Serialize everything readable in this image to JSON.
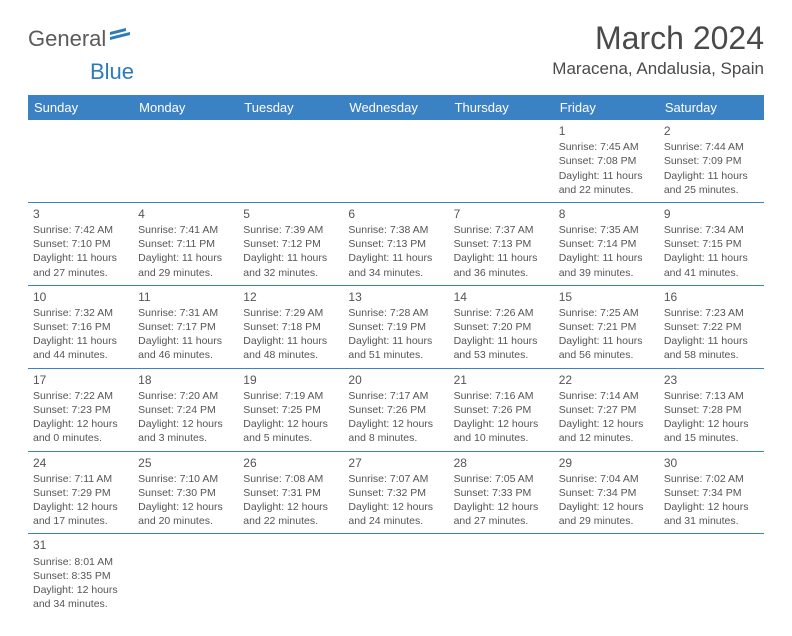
{
  "header": {
    "logo": {
      "part1": "General",
      "part2": "Blue"
    },
    "title": "March 2024",
    "location": "Maracena, Andalusia, Spain"
  },
  "daysOfWeek": [
    "Sunday",
    "Monday",
    "Tuesday",
    "Wednesday",
    "Thursday",
    "Friday",
    "Saturday"
  ],
  "colors": {
    "headerBg": "#3b82c4",
    "headerText": "#ffffff",
    "border": "#3b82c4",
    "text": "#555555",
    "logoAccent": "#2b7bbd"
  },
  "weeks": [
    [
      {
        "empty": true
      },
      {
        "empty": true
      },
      {
        "empty": true
      },
      {
        "empty": true
      },
      {
        "empty": true
      },
      {
        "day": "1",
        "sunrise": "Sunrise: 7:45 AM",
        "sunset": "Sunset: 7:08 PM",
        "daylight1": "Daylight: 11 hours",
        "daylight2": "and 22 minutes."
      },
      {
        "day": "2",
        "sunrise": "Sunrise: 7:44 AM",
        "sunset": "Sunset: 7:09 PM",
        "daylight1": "Daylight: 11 hours",
        "daylight2": "and 25 minutes."
      }
    ],
    [
      {
        "day": "3",
        "sunrise": "Sunrise: 7:42 AM",
        "sunset": "Sunset: 7:10 PM",
        "daylight1": "Daylight: 11 hours",
        "daylight2": "and 27 minutes."
      },
      {
        "day": "4",
        "sunrise": "Sunrise: 7:41 AM",
        "sunset": "Sunset: 7:11 PM",
        "daylight1": "Daylight: 11 hours",
        "daylight2": "and 29 minutes."
      },
      {
        "day": "5",
        "sunrise": "Sunrise: 7:39 AM",
        "sunset": "Sunset: 7:12 PM",
        "daylight1": "Daylight: 11 hours",
        "daylight2": "and 32 minutes."
      },
      {
        "day": "6",
        "sunrise": "Sunrise: 7:38 AM",
        "sunset": "Sunset: 7:13 PM",
        "daylight1": "Daylight: 11 hours",
        "daylight2": "and 34 minutes."
      },
      {
        "day": "7",
        "sunrise": "Sunrise: 7:37 AM",
        "sunset": "Sunset: 7:13 PM",
        "daylight1": "Daylight: 11 hours",
        "daylight2": "and 36 minutes."
      },
      {
        "day": "8",
        "sunrise": "Sunrise: 7:35 AM",
        "sunset": "Sunset: 7:14 PM",
        "daylight1": "Daylight: 11 hours",
        "daylight2": "and 39 minutes."
      },
      {
        "day": "9",
        "sunrise": "Sunrise: 7:34 AM",
        "sunset": "Sunset: 7:15 PM",
        "daylight1": "Daylight: 11 hours",
        "daylight2": "and 41 minutes."
      }
    ],
    [
      {
        "day": "10",
        "sunrise": "Sunrise: 7:32 AM",
        "sunset": "Sunset: 7:16 PM",
        "daylight1": "Daylight: 11 hours",
        "daylight2": "and 44 minutes."
      },
      {
        "day": "11",
        "sunrise": "Sunrise: 7:31 AM",
        "sunset": "Sunset: 7:17 PM",
        "daylight1": "Daylight: 11 hours",
        "daylight2": "and 46 minutes."
      },
      {
        "day": "12",
        "sunrise": "Sunrise: 7:29 AM",
        "sunset": "Sunset: 7:18 PM",
        "daylight1": "Daylight: 11 hours",
        "daylight2": "and 48 minutes."
      },
      {
        "day": "13",
        "sunrise": "Sunrise: 7:28 AM",
        "sunset": "Sunset: 7:19 PM",
        "daylight1": "Daylight: 11 hours",
        "daylight2": "and 51 minutes."
      },
      {
        "day": "14",
        "sunrise": "Sunrise: 7:26 AM",
        "sunset": "Sunset: 7:20 PM",
        "daylight1": "Daylight: 11 hours",
        "daylight2": "and 53 minutes."
      },
      {
        "day": "15",
        "sunrise": "Sunrise: 7:25 AM",
        "sunset": "Sunset: 7:21 PM",
        "daylight1": "Daylight: 11 hours",
        "daylight2": "and 56 minutes."
      },
      {
        "day": "16",
        "sunrise": "Sunrise: 7:23 AM",
        "sunset": "Sunset: 7:22 PM",
        "daylight1": "Daylight: 11 hours",
        "daylight2": "and 58 minutes."
      }
    ],
    [
      {
        "day": "17",
        "sunrise": "Sunrise: 7:22 AM",
        "sunset": "Sunset: 7:23 PM",
        "daylight1": "Daylight: 12 hours",
        "daylight2": "and 0 minutes."
      },
      {
        "day": "18",
        "sunrise": "Sunrise: 7:20 AM",
        "sunset": "Sunset: 7:24 PM",
        "daylight1": "Daylight: 12 hours",
        "daylight2": "and 3 minutes."
      },
      {
        "day": "19",
        "sunrise": "Sunrise: 7:19 AM",
        "sunset": "Sunset: 7:25 PM",
        "daylight1": "Daylight: 12 hours",
        "daylight2": "and 5 minutes."
      },
      {
        "day": "20",
        "sunrise": "Sunrise: 7:17 AM",
        "sunset": "Sunset: 7:26 PM",
        "daylight1": "Daylight: 12 hours",
        "daylight2": "and 8 minutes."
      },
      {
        "day": "21",
        "sunrise": "Sunrise: 7:16 AM",
        "sunset": "Sunset: 7:26 PM",
        "daylight1": "Daylight: 12 hours",
        "daylight2": "and 10 minutes."
      },
      {
        "day": "22",
        "sunrise": "Sunrise: 7:14 AM",
        "sunset": "Sunset: 7:27 PM",
        "daylight1": "Daylight: 12 hours",
        "daylight2": "and 12 minutes."
      },
      {
        "day": "23",
        "sunrise": "Sunrise: 7:13 AM",
        "sunset": "Sunset: 7:28 PM",
        "daylight1": "Daylight: 12 hours",
        "daylight2": "and 15 minutes."
      }
    ],
    [
      {
        "day": "24",
        "sunrise": "Sunrise: 7:11 AM",
        "sunset": "Sunset: 7:29 PM",
        "daylight1": "Daylight: 12 hours",
        "daylight2": "and 17 minutes."
      },
      {
        "day": "25",
        "sunrise": "Sunrise: 7:10 AM",
        "sunset": "Sunset: 7:30 PM",
        "daylight1": "Daylight: 12 hours",
        "daylight2": "and 20 minutes."
      },
      {
        "day": "26",
        "sunrise": "Sunrise: 7:08 AM",
        "sunset": "Sunset: 7:31 PM",
        "daylight1": "Daylight: 12 hours",
        "daylight2": "and 22 minutes."
      },
      {
        "day": "27",
        "sunrise": "Sunrise: 7:07 AM",
        "sunset": "Sunset: 7:32 PM",
        "daylight1": "Daylight: 12 hours",
        "daylight2": "and 24 minutes."
      },
      {
        "day": "28",
        "sunrise": "Sunrise: 7:05 AM",
        "sunset": "Sunset: 7:33 PM",
        "daylight1": "Daylight: 12 hours",
        "daylight2": "and 27 minutes."
      },
      {
        "day": "29",
        "sunrise": "Sunrise: 7:04 AM",
        "sunset": "Sunset: 7:34 PM",
        "daylight1": "Daylight: 12 hours",
        "daylight2": "and 29 minutes."
      },
      {
        "day": "30",
        "sunrise": "Sunrise: 7:02 AM",
        "sunset": "Sunset: 7:34 PM",
        "daylight1": "Daylight: 12 hours",
        "daylight2": "and 31 minutes."
      }
    ],
    [
      {
        "day": "31",
        "sunrise": "Sunrise: 8:01 AM",
        "sunset": "Sunset: 8:35 PM",
        "daylight1": "Daylight: 12 hours",
        "daylight2": "and 34 minutes."
      },
      {
        "empty": true
      },
      {
        "empty": true
      },
      {
        "empty": true
      },
      {
        "empty": true
      },
      {
        "empty": true
      },
      {
        "empty": true
      }
    ]
  ]
}
